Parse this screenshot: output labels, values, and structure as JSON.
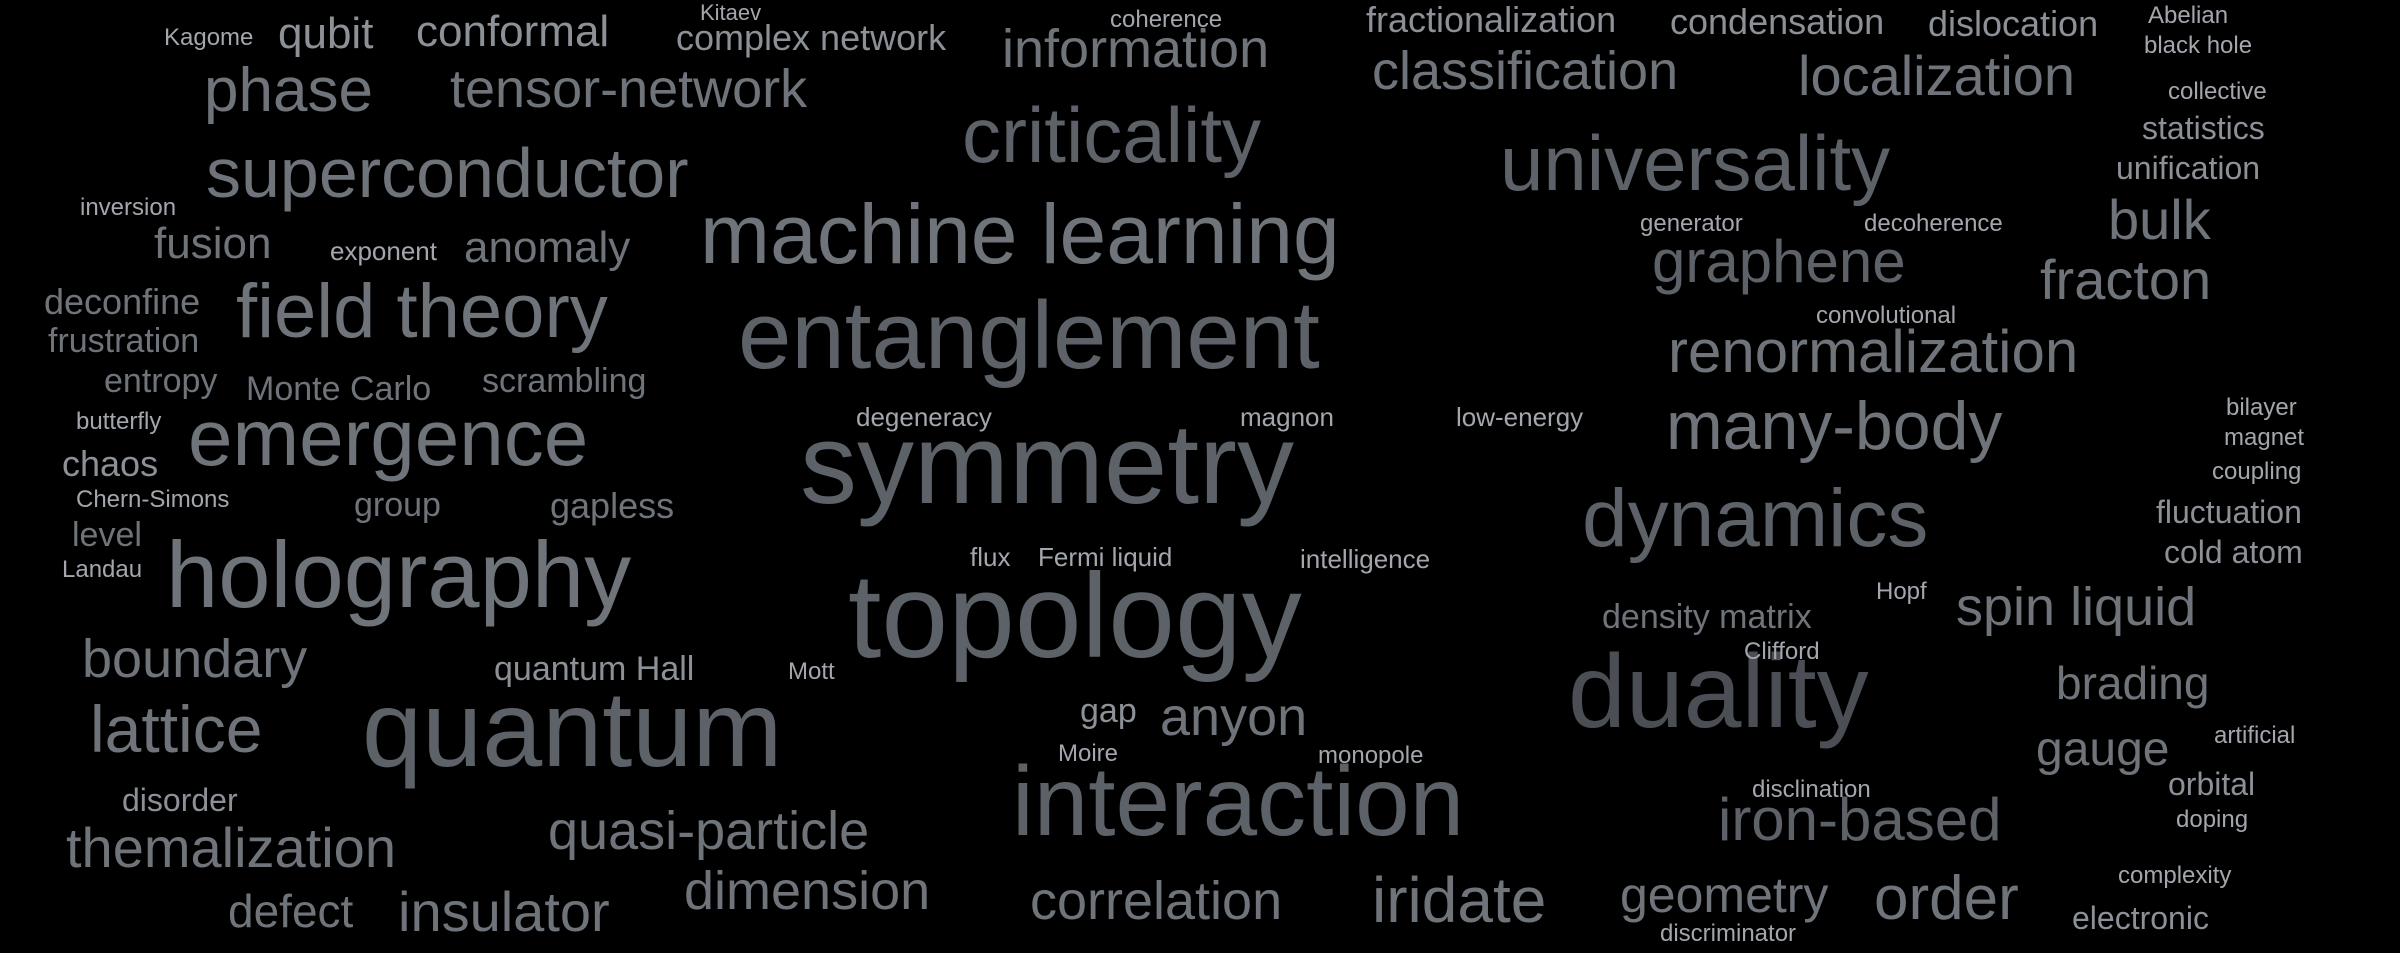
{
  "background": "#000000",
  "palette": {
    "t1": "#4b4e55",
    "t2": "#5d6168",
    "t3": "#6f747b",
    "t4": "#8c9097",
    "t5": "#a3a7ad"
  },
  "words": [
    {
      "text": "topology",
      "size": 120
    },
    {
      "text": "symmetry",
      "size": 114
    },
    {
      "text": "entanglement",
      "size": 96
    },
    {
      "text": "quantum",
      "size": 108
    },
    {
      "text": "interaction",
      "size": 98
    },
    {
      "text": "duality",
      "size": 104
    },
    {
      "text": "holography",
      "size": 94
    },
    {
      "text": "machine learning",
      "size": 84
    },
    {
      "text": "criticality",
      "size": 78
    },
    {
      "text": "universality",
      "size": 78
    },
    {
      "text": "dynamics",
      "size": 82
    },
    {
      "text": "emergence",
      "size": 80
    },
    {
      "text": "field theory",
      "size": 76
    },
    {
      "text": "superconductor",
      "size": 70
    },
    {
      "text": "many-body",
      "size": 68
    },
    {
      "text": "renormalization",
      "size": 60
    },
    {
      "text": "graphene",
      "size": 60
    },
    {
      "text": "iron-based",
      "size": 60
    },
    {
      "text": "lattice",
      "size": 66
    },
    {
      "text": "phase",
      "size": 62
    },
    {
      "text": "tensor-network",
      "size": 54
    },
    {
      "text": "information",
      "size": 54
    },
    {
      "text": "classification",
      "size": 54
    },
    {
      "text": "localization",
      "size": 56
    },
    {
      "text": "themalization",
      "size": 56
    },
    {
      "text": "quasi-particle",
      "size": 54
    },
    {
      "text": "boundary",
      "size": 54
    },
    {
      "text": "insulator",
      "size": 56
    },
    {
      "text": "dimension",
      "size": 54
    },
    {
      "text": "correlation",
      "size": 54
    },
    {
      "text": "iridate",
      "size": 64
    },
    {
      "text": "geometry",
      "size": 50
    },
    {
      "text": "order",
      "size": 62
    },
    {
      "text": "spin liquid",
      "size": 54
    },
    {
      "text": "fracton",
      "size": 56
    },
    {
      "text": "bulk",
      "size": 56
    },
    {
      "text": "anyon",
      "size": 54
    },
    {
      "text": "brading",
      "size": 46
    },
    {
      "text": "gauge",
      "size": 48
    },
    {
      "text": "defect",
      "size": 46
    },
    {
      "text": "conformal",
      "size": 44
    },
    {
      "text": "qubit",
      "size": 44
    },
    {
      "text": "fusion",
      "size": 44
    },
    {
      "text": "anomaly",
      "size": 44
    },
    {
      "text": "complex network",
      "size": 36
    },
    {
      "text": "fractionalization",
      "size": 36
    },
    {
      "text": "condensation",
      "size": 36
    },
    {
      "text": "dislocation",
      "size": 36
    },
    {
      "text": "deconfine",
      "size": 36
    },
    {
      "text": "frustration",
      "size": 34
    },
    {
      "text": "entropy",
      "size": 34
    },
    {
      "text": "Monte Carlo",
      "size": 34
    },
    {
      "text": "scrambling",
      "size": 34
    },
    {
      "text": "chaos",
      "size": 36
    },
    {
      "text": "group",
      "size": 34
    },
    {
      "text": "gapless",
      "size": 36
    },
    {
      "text": "level",
      "size": 34
    },
    {
      "text": "density matrix",
      "size": 34
    },
    {
      "text": "quantum Hall",
      "size": 34
    },
    {
      "text": "gap",
      "size": 34
    },
    {
      "text": "disorder",
      "size": 32
    },
    {
      "text": "statistics",
      "size": 32
    },
    {
      "text": "unification",
      "size": 32
    },
    {
      "text": "fluctuation",
      "size": 32
    },
    {
      "text": "cold atom",
      "size": 32
    },
    {
      "text": "orbital",
      "size": 32
    },
    {
      "text": "electronic",
      "size": 32
    },
    {
      "text": "Kagome",
      "size": 24
    },
    {
      "text": "Kitaev",
      "size": 22
    },
    {
      "text": "coherence",
      "size": 24
    },
    {
      "text": "Abelian",
      "size": 24
    },
    {
      "text": "black hole",
      "size": 24
    },
    {
      "text": "collective",
      "size": 24
    },
    {
      "text": "inversion",
      "size": 24
    },
    {
      "text": "exponent",
      "size": 26
    },
    {
      "text": "generator",
      "size": 24
    },
    {
      "text": "decoherence",
      "size": 24
    },
    {
      "text": "convolutional",
      "size": 24
    },
    {
      "text": "butterfly",
      "size": 24
    },
    {
      "text": "degeneracy",
      "size": 26
    },
    {
      "text": "magnon",
      "size": 26
    },
    {
      "text": "low-energy",
      "size": 26
    },
    {
      "text": "bilayer",
      "size": 24
    },
    {
      "text": "magnet",
      "size": 24
    },
    {
      "text": "coupling",
      "size": 24
    },
    {
      "text": "Chern-Simons",
      "size": 24
    },
    {
      "text": "Landau",
      "size": 24
    },
    {
      "text": "flux",
      "size": 26
    },
    {
      "text": "Fermi liquid",
      "size": 26
    },
    {
      "text": "intelligence",
      "size": 26
    },
    {
      "text": "Hopf",
      "size": 24
    },
    {
      "text": "Clifford",
      "size": 24
    },
    {
      "text": "Mott",
      "size": 24
    },
    {
      "text": "Moire",
      "size": 24
    },
    {
      "text": "monopole",
      "size": 24
    },
    {
      "text": "artificial",
      "size": 24
    },
    {
      "text": "disclination",
      "size": 24
    },
    {
      "text": "doping",
      "size": 24
    },
    {
      "text": "complexity",
      "size": 24
    },
    {
      "text": "discriminator",
      "size": 24
    }
  ]
}
